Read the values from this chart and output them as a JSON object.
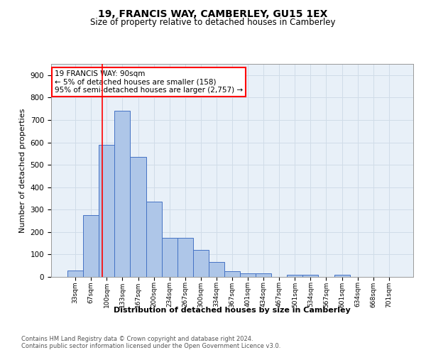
{
  "title1": "19, FRANCIS WAY, CAMBERLEY, GU15 1EX",
  "title2": "Size of property relative to detached houses in Camberley",
  "xlabel": "Distribution of detached houses by size in Camberley",
  "ylabel": "Number of detached properties",
  "footnote1": "Contains HM Land Registry data © Crown copyright and database right 2024.",
  "footnote2": "Contains public sector information licensed under the Open Government Licence v3.0.",
  "bar_labels": [
    "33sqm",
    "67sqm",
    "100sqm",
    "133sqm",
    "167sqm",
    "200sqm",
    "234sqm",
    "267sqm",
    "300sqm",
    "334sqm",
    "367sqm",
    "401sqm",
    "434sqm",
    "467sqm",
    "501sqm",
    "534sqm",
    "567sqm",
    "601sqm",
    "634sqm",
    "668sqm",
    "701sqm"
  ],
  "bar_values": [
    27,
    275,
    590,
    740,
    535,
    335,
    175,
    175,
    120,
    65,
    25,
    15,
    15,
    0,
    10,
    10,
    0,
    10,
    0,
    0,
    0
  ],
  "bar_color": "#aec6e8",
  "bar_edge_color": "#4472c4",
  "grid_color": "#d0dce8",
  "bg_color": "#e8f0f8",
  "property_line_color": "red",
  "annotation_text": "19 FRANCIS WAY: 90sqm\n← 5% of detached houses are smaller (158)\n95% of semi-detached houses are larger (2,757) →",
  "annotation_box_color": "white",
  "annotation_box_edge_color": "red",
  "ylim": [
    0,
    950
  ],
  "yticks": [
    0,
    100,
    200,
    300,
    400,
    500,
    600,
    700,
    800,
    900
  ],
  "title1_fontsize": 10,
  "title2_fontsize": 8.5,
  "ylabel_fontsize": 8,
  "xlabel_fontsize": 8,
  "footnote_fontsize": 6,
  "annotation_fontsize": 7.5
}
